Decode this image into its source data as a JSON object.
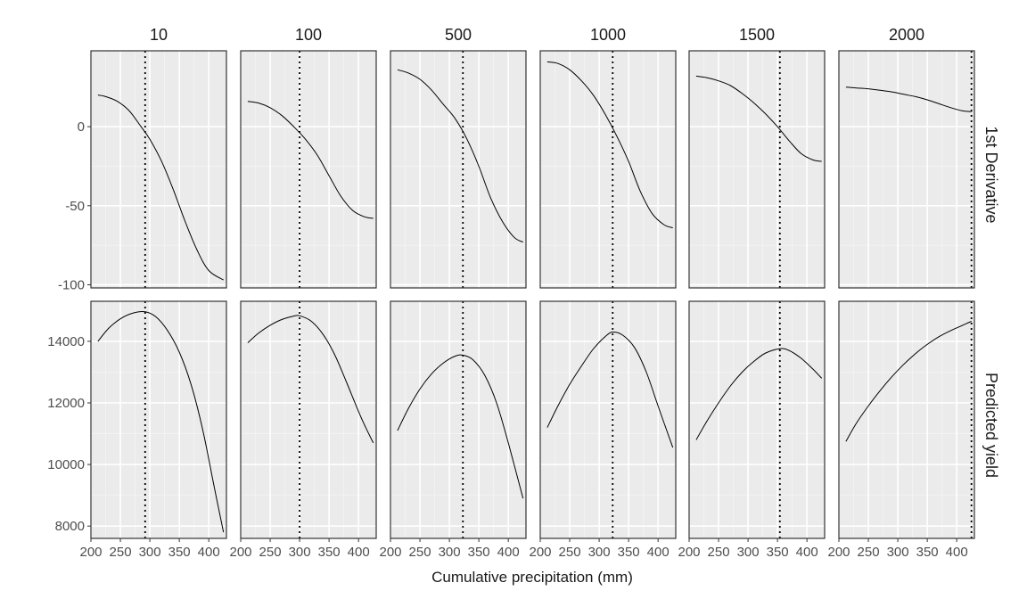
{
  "chart_data": {
    "type": "line",
    "title": "",
    "xlabel": "Cumulative precipitation (mm)",
    "xlim": [
      200,
      430
    ],
    "x_ticks": [
      200,
      250,
      300,
      350,
      400
    ],
    "columns": [
      "10",
      "100",
      "500",
      "1000",
      "1500",
      "2000"
    ],
    "rows": [
      {
        "label": "1st  Derivative",
        "ylim": [
          -102,
          48
        ],
        "y_ticks": [
          -100,
          -50,
          0
        ],
        "y_tick_labels": [
          "-100",
          "-50",
          "0"
        ]
      },
      {
        "label": "Predicted  yield",
        "ylim": [
          7600,
          15300
        ],
        "y_ticks": [
          8000,
          10000,
          12000,
          14000
        ],
        "y_tick_labels": [
          "8000",
          "10000",
          "12000",
          "14000"
        ]
      }
    ],
    "vlines": [
      292,
      300,
      323,
      323,
      354,
      425
    ],
    "x": [
      200,
      220,
      240,
      260,
      280,
      300,
      320,
      340,
      360,
      380,
      400,
      420
    ],
    "series": [
      {
        "row": 0,
        "col": 0,
        "x": [
          212,
          225,
          245,
          265,
          285,
          300,
          320,
          340,
          360,
          380,
          400,
          425
        ],
        "y": [
          20,
          19,
          16,
          10,
          0,
          -8,
          -22,
          -40,
          -60,
          -78,
          -91,
          -97
        ]
      },
      {
        "row": 1,
        "col": 0,
        "x": [
          212,
          230,
          250,
          270,
          292,
          310,
          330,
          350,
          370,
          390,
          410,
          425
        ],
        "y": [
          14000,
          14420,
          14730,
          14910,
          14960,
          14800,
          14350,
          13650,
          12600,
          11100,
          9200,
          7800
        ]
      },
      {
        "row": 0,
        "col": 1,
        "x": [
          212,
          230,
          250,
          270,
          290,
          310,
          330,
          350,
          370,
          390,
          410,
          425
        ],
        "y": [
          16,
          15,
          12,
          7,
          0,
          -8,
          -18,
          -31,
          -44,
          -53,
          -57,
          -58
        ]
      },
      {
        "row": 1,
        "col": 1,
        "x": [
          212,
          230,
          250,
          270,
          290,
          300,
          320,
          340,
          360,
          380,
          405,
          425
        ],
        "y": [
          13950,
          14260,
          14520,
          14710,
          14820,
          14830,
          14650,
          14220,
          13550,
          12650,
          11500,
          10700
        ]
      },
      {
        "row": 0,
        "col": 2,
        "x": [
          212,
          230,
          250,
          270,
          290,
          310,
          330,
          350,
          370,
          390,
          410,
          425
        ],
        "y": [
          36,
          34,
          30,
          23,
          14,
          5,
          -8,
          -25,
          -45,
          -60,
          -70,
          -73
        ]
      },
      {
        "row": 1,
        "col": 2,
        "x": [
          212,
          230,
          250,
          270,
          290,
          310,
          323,
          340,
          360,
          380,
          400,
          425
        ],
        "y": [
          11100,
          11800,
          12450,
          12950,
          13300,
          13520,
          13550,
          13400,
          12900,
          12000,
          10700,
          8900
        ]
      },
      {
        "row": 0,
        "col": 3,
        "x": [
          212,
          230,
          250,
          270,
          290,
          310,
          330,
          350,
          370,
          390,
          410,
          425
        ],
        "y": [
          41,
          40,
          36,
          29,
          20,
          8,
          -6,
          -22,
          -41,
          -55,
          -62,
          -64
        ]
      },
      {
        "row": 1,
        "col": 3,
        "x": [
          212,
          230,
          250,
          270,
          290,
          310,
          323,
          340,
          360,
          380,
          400,
          425
        ],
        "y": [
          11200,
          11900,
          12600,
          13200,
          13750,
          14150,
          14300,
          14200,
          13800,
          13000,
          11900,
          10550
        ]
      },
      {
        "row": 0,
        "col": 4,
        "x": [
          212,
          230,
          250,
          270,
          290,
          310,
          330,
          350,
          370,
          390,
          410,
          425
        ],
        "y": [
          32,
          31,
          29,
          26,
          21,
          15,
          8,
          0,
          -9,
          -17,
          -21,
          -22
        ]
      },
      {
        "row": 1,
        "col": 4,
        "x": [
          212,
          230,
          250,
          270,
          290,
          310,
          330,
          354,
          370,
          390,
          410,
          425
        ],
        "y": [
          10800,
          11400,
          12000,
          12550,
          13000,
          13350,
          13620,
          13760,
          13700,
          13450,
          13100,
          12800
        ]
      },
      {
        "row": 0,
        "col": 5,
        "x": [
          212,
          230,
          250,
          270,
          290,
          310,
          330,
          350,
          370,
          390,
          410,
          425
        ],
        "y": [
          25,
          24.5,
          24,
          23,
          22,
          20.5,
          19,
          17,
          14.5,
          12,
          10,
          9.5
        ]
      },
      {
        "row": 1,
        "col": 5,
        "x": [
          212,
          230,
          250,
          270,
          290,
          310,
          330,
          350,
          370,
          390,
          410,
          425
        ],
        "y": [
          10750,
          11350,
          11900,
          12400,
          12850,
          13250,
          13600,
          13900,
          14150,
          14350,
          14520,
          14650
        ]
      }
    ]
  }
}
